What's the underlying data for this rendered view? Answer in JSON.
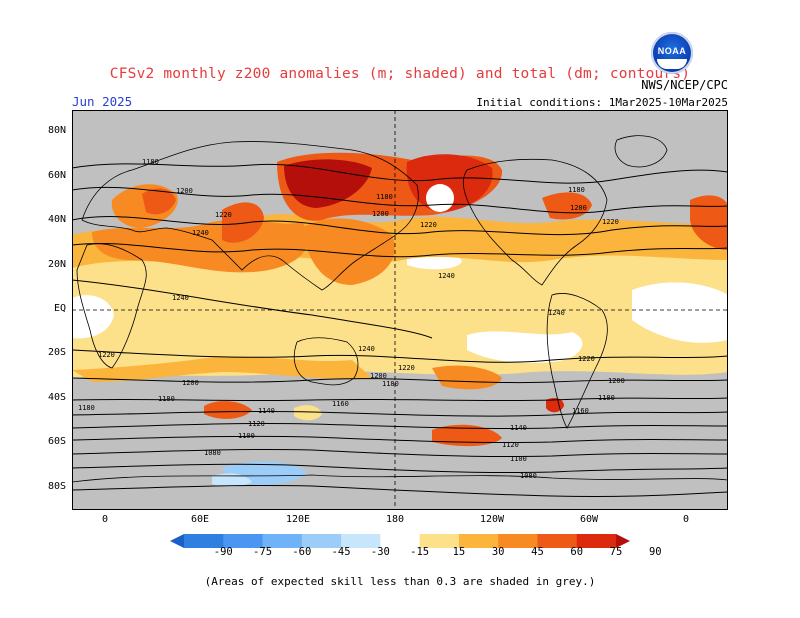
{
  "title": "CFSv2 monthly z200 anomalies (m; shaded) and total (dm; contours)",
  "agency": "NWS/NCEP/CPC",
  "logo_text": "NOAA",
  "month": "Jun 2025",
  "initial_conditions": "Initial conditions: 1Mar2025-10Mar2025",
  "footnote": "(Areas of expected skill less than 0.3 are shaded in grey.)",
  "lat_labels": [
    "80N",
    "60N",
    "40N",
    "20N",
    "EQ",
    "20S",
    "40S",
    "60S",
    "80S"
  ],
  "lon_labels": [
    "0",
    "60E",
    "120E",
    "180",
    "120W",
    "60W",
    "0"
  ],
  "colorbar": {
    "labels": [
      "-90",
      "-75",
      "-60",
      "-45",
      "-30",
      "-15",
      "15",
      "30",
      "45",
      "60",
      "75",
      "90"
    ],
    "colors": [
      "#1a5fc8",
      "#2e7fe0",
      "#4a96f0",
      "#6fb2f7",
      "#9ccdf9",
      "#c7e6fb",
      "#ffffff",
      "#fde08a",
      "#fbb43c",
      "#f78a22",
      "#ee5a16",
      "#dc2a0e",
      "#b40f0a"
    ]
  },
  "contour_labels": [
    "1080",
    "1100",
    "1120",
    "1140",
    "1160",
    "1180",
    "1200",
    "1220",
    "1240"
  ],
  "colors": {
    "grey_mask": "#c0c0c0",
    "title_red": "#e53c3c",
    "month_blue": "#2a3fd6"
  }
}
